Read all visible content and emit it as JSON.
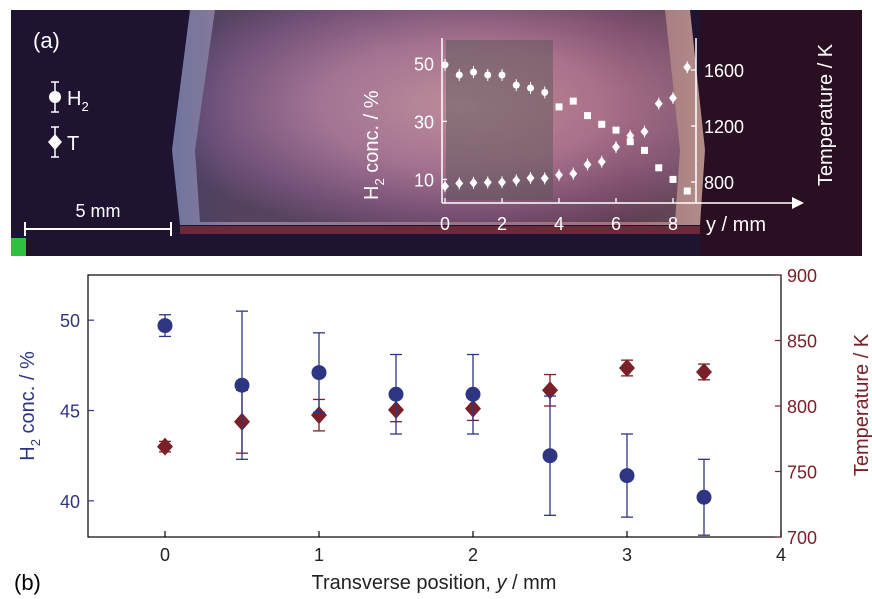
{
  "panel_a": {
    "label": "(a)",
    "legend": [
      {
        "marker": "circle",
        "label_main": "H",
        "label_sub": "2"
      },
      {
        "marker": "diamond",
        "label_main": "T",
        "label_sub": ""
      }
    ],
    "scale_bar_label": "5 mm",
    "inset": {
      "ylabel_left_main": "H",
      "ylabel_left_sub": "2",
      "ylabel_left_rest": " conc. / %",
      "ylabel_right": "Temperature / K",
      "xlabel": "y / mm",
      "left_ticks": [
        "50",
        "30",
        "10"
      ],
      "right_ticks": [
        "1600",
        "1200",
        "800"
      ],
      "x_ticks": [
        "0",
        "2",
        "4",
        "6",
        "8"
      ]
    }
  },
  "panel_b_label": "(b)",
  "colors": {
    "h2": "#2e3582",
    "temp": "#7a2028",
    "axis_h2": "#2e3582",
    "axis_temp": "#7a2028"
  },
  "chart_data": [
    {
      "type": "scatter",
      "title": "",
      "xlabel": "y / mm",
      "ylabel_left": "H2 conc. / %",
      "ylabel_right": "Temperature / K",
      "xlim": [
        0,
        9
      ],
      "ylim_left": [
        0,
        55
      ],
      "ylim_right": [
        700,
        1800
      ],
      "series": [
        {
          "name": "H2",
          "axis": "left",
          "x": [
            0,
            0.5,
            1.0,
            1.5,
            2.0,
            2.5,
            3.0,
            3.5,
            4.0,
            4.5,
            5.0,
            5.5,
            6.0,
            6.5,
            7.0,
            7.5,
            8.0,
            8.5
          ],
          "y": [
            49.5,
            46,
            47,
            46,
            46,
            42.5,
            41.5,
            40,
            35,
            37,
            32,
            29,
            27,
            23,
            20,
            14,
            10,
            6
          ]
        },
        {
          "name": "T",
          "axis": "right",
          "x": [
            0,
            0.5,
            1.0,
            1.5,
            2.0,
            2.5,
            3.0,
            3.5,
            4.0,
            4.5,
            5.0,
            5.5,
            6.0,
            6.5,
            7.0,
            7.5,
            8.0,
            8.5
          ],
          "y": [
            770,
            790,
            795,
            797,
            798,
            812,
            829,
            826,
            850,
            860,
            925,
            945,
            1050,
            1130,
            1160,
            1360,
            1400,
            1620
          ]
        }
      ]
    },
    {
      "type": "scatter",
      "title": "",
      "xlabel_main": "Transverse position, ",
      "xlabel_italic": "y",
      "xlabel_rest": " / mm",
      "ylabel_left_main": "H",
      "ylabel_left_sub": "2",
      "ylabel_left_rest": " conc. / %",
      "ylabel_right": "Temperature / K",
      "xlim": [
        -0.5,
        4
      ],
      "ylim_left": [
        38,
        52.5
      ],
      "ylim_right": [
        700,
        900
      ],
      "x_ticks": [
        0,
        1,
        2,
        3,
        4
      ],
      "y_left_ticks": [
        40,
        45,
        50
      ],
      "y_right_ticks": [
        700,
        750,
        800,
        850,
        900
      ],
      "grid": false,
      "series": [
        {
          "name": "H2",
          "axis": "left",
          "marker": "circle",
          "x": [
            0,
            0.5,
            1.0,
            1.5,
            2.0,
            2.5,
            3.0,
            3.5
          ],
          "y": [
            49.7,
            46.4,
            47.1,
            45.9,
            45.9,
            42.5,
            41.4,
            40.2
          ],
          "err": [
            0.6,
            4.1,
            2.2,
            2.2,
            2.2,
            3.3,
            2.3,
            2.1
          ]
        },
        {
          "name": "T",
          "axis": "right",
          "marker": "diamond",
          "x": [
            0,
            0.5,
            1.0,
            1.5,
            2.0,
            2.5,
            3.0,
            3.5
          ],
          "y": [
            769,
            788,
            793,
            797,
            798,
            812,
            829,
            826
          ],
          "err": [
            4,
            24,
            12,
            9,
            9,
            12,
            6,
            6
          ]
        }
      ]
    }
  ]
}
